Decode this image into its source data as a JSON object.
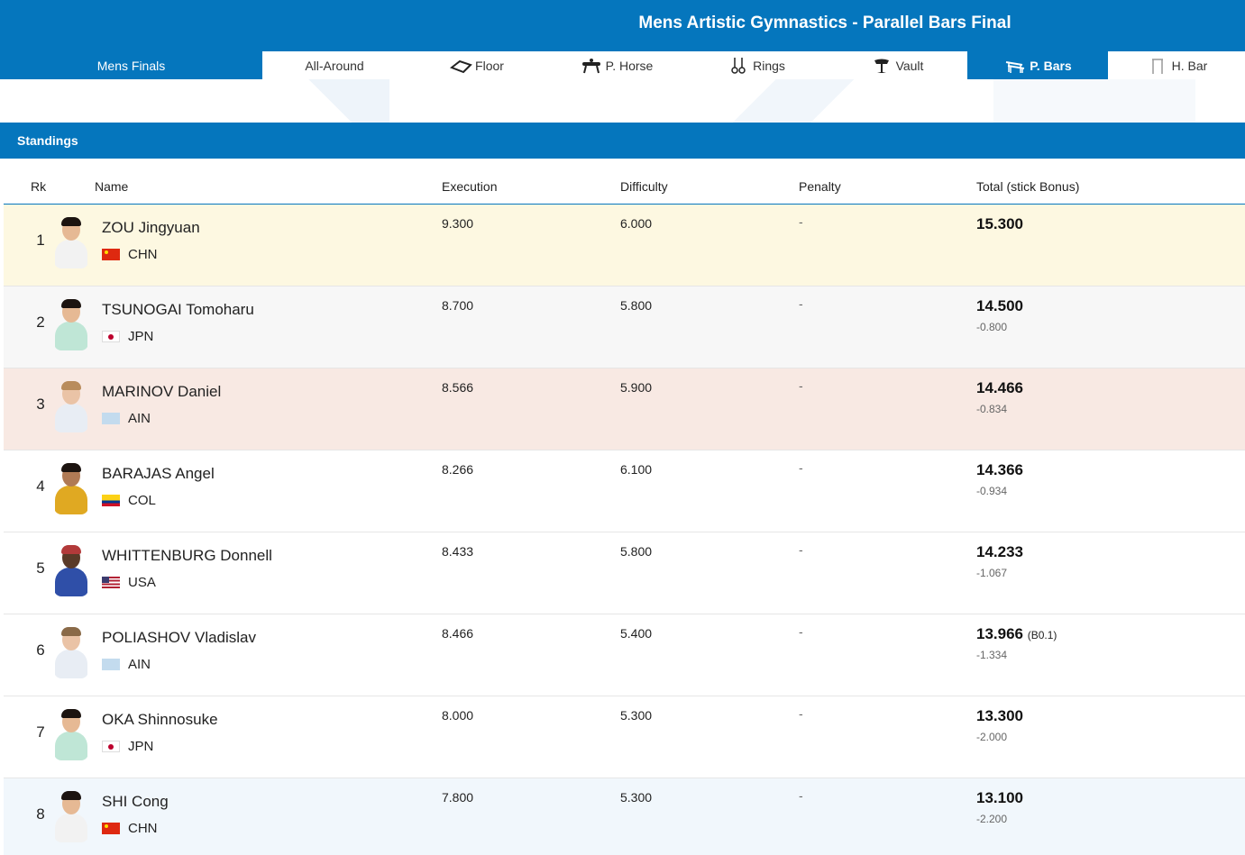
{
  "header": {
    "title": "Mens Artistic Gymnastics - Parallel Bars Final"
  },
  "tabs": [
    {
      "label": "Mens Finals",
      "icon": "",
      "active": false
    },
    {
      "label": "All-Around",
      "icon": "",
      "active": false
    },
    {
      "label": "Floor",
      "icon": "floor-icon",
      "active": false
    },
    {
      "label": "P. Horse",
      "icon": "pommel-horse-icon",
      "active": false
    },
    {
      "label": "Rings",
      "icon": "rings-icon",
      "active": false
    },
    {
      "label": "Vault",
      "icon": "vault-icon",
      "active": false
    },
    {
      "label": "P. Bars",
      "icon": "parallel-bars-icon",
      "active": true
    },
    {
      "label": "H. Bar",
      "icon": "horizontal-bar-icon",
      "active": false
    }
  ],
  "standings": {
    "title": "Standings"
  },
  "columns": {
    "rk": "Rk",
    "name": "Name",
    "execution": "Execution",
    "difficulty": "Difficulty",
    "penalty": "Penalty",
    "total": "Total (stick Bonus)"
  },
  "rows": [
    {
      "rank": "1",
      "name": "ZOU Jingyuan",
      "country": "CHN",
      "execution": "9.300",
      "difficulty": "6.000",
      "penalty": "-",
      "total": "15.300",
      "bonus": "",
      "gap": ""
    },
    {
      "rank": "2",
      "name": "TSUNOGAI Tomoharu",
      "country": "JPN",
      "execution": "8.700",
      "difficulty": "5.800",
      "penalty": "-",
      "total": "14.500",
      "bonus": "",
      "gap": "-0.800"
    },
    {
      "rank": "3",
      "name": "MARINOV Daniel",
      "country": "AIN",
      "execution": "8.566",
      "difficulty": "5.900",
      "penalty": "-",
      "total": "14.466",
      "bonus": "",
      "gap": "-0.834"
    },
    {
      "rank": "4",
      "name": "BARAJAS Angel",
      "country": "COL",
      "execution": "8.266",
      "difficulty": "6.100",
      "penalty": "-",
      "total": "14.366",
      "bonus": "",
      "gap": "-0.934"
    },
    {
      "rank": "5",
      "name": "WHITTENBURG Donnell",
      "country": "USA",
      "execution": "8.433",
      "difficulty": "5.800",
      "penalty": "-",
      "total": "14.233",
      "bonus": "",
      "gap": "-1.067"
    },
    {
      "rank": "6",
      "name": "POLIASHOV Vladislav",
      "country": "AIN",
      "execution": "8.466",
      "difficulty": "5.400",
      "penalty": "-",
      "total": "13.966",
      "bonus": "(B0.1)",
      "gap": "-1.334"
    },
    {
      "rank": "7",
      "name": "OKA Shinnosuke",
      "country": "JPN",
      "execution": "8.000",
      "difficulty": "5.300",
      "penalty": "-",
      "total": "13.300",
      "bonus": "",
      "gap": "-2.000"
    },
    {
      "rank": "8",
      "name": "SHI Cong",
      "country": "CHN",
      "execution": "7.800",
      "difficulty": "5.300",
      "penalty": "-",
      "total": "13.100",
      "bonus": "",
      "gap": "-2.200"
    }
  ],
  "colors": {
    "brand_blue": "#0576bd",
    "gold_row": "#fdf8e1",
    "silver_row": "#f7f7f7",
    "bronze_row": "#f8e9e3",
    "last_row": "#f1f7fc"
  }
}
